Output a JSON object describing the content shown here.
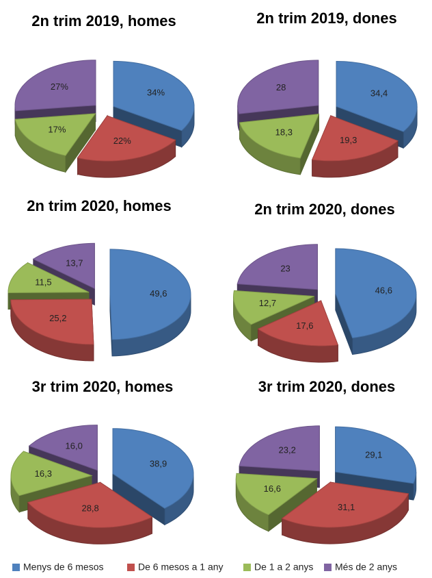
{
  "legend": {
    "categories": [
      "Menys de 6 mesos",
      "De 6 mesos a 1 any",
      "De 1 a 2 anys",
      "Més de 2 anys"
    ],
    "colors": [
      "#4f81bd",
      "#c0504d",
      "#9bbb59",
      "#8064a2"
    ]
  },
  "chart_data": [
    {
      "type": "pie",
      "title": "2n trim 2019, homes",
      "values": [
        34,
        22,
        17,
        27
      ],
      "value_labels": [
        "34%",
        "22%",
        "17%",
        "27%"
      ]
    },
    {
      "type": "pie",
      "title": "2n trim 2019, dones",
      "values": [
        34.4,
        19.3,
        18.3,
        28
      ],
      "value_labels": [
        "34,4",
        "19,3",
        "18,3",
        "28"
      ]
    },
    {
      "type": "pie",
      "title": "2n trim 2020, homes",
      "values": [
        49.6,
        25.2,
        11.5,
        13.7
      ],
      "value_labels": [
        "49,6",
        "25,2",
        "11,5",
        "13,7"
      ]
    },
    {
      "type": "pie",
      "title": "2n trim 2020, dones",
      "values": [
        46.6,
        17.6,
        12.7,
        23
      ],
      "value_labels": [
        "46,6",
        "17,6",
        "12,7",
        "23"
      ]
    },
    {
      "type": "pie",
      "title": "3r trim 2020, homes",
      "values": [
        38.9,
        28.8,
        16.3,
        16.0
      ],
      "value_labels": [
        "38,9",
        "28,8",
        "16,3",
        "16,0"
      ]
    },
    {
      "type": "pie",
      "title": "3r trim 2020, dones",
      "values": [
        29.1,
        31.1,
        16.6,
        23.2
      ],
      "value_labels": [
        "29,1",
        "31,1",
        "16,6",
        "23,2"
      ]
    }
  ]
}
